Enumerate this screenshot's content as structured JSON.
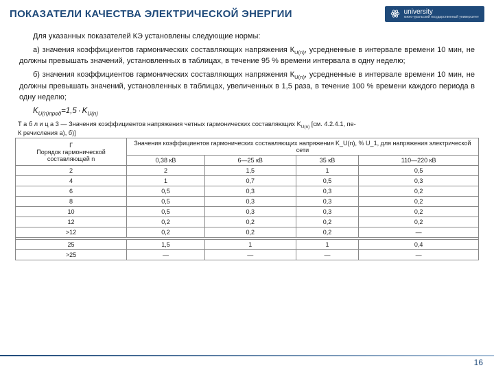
{
  "header": {
    "title": "ПОКАЗАТЕЛИ КАЧЕСТВА ЭЛЕКТРИЧЕСКОЙ ЭНЕРГИИ",
    "uni_main": "university",
    "uni_sub": "южно-уральский государственный университет"
  },
  "paragraphs": {
    "p1": "Для указанных показателей КЭ установлены следующие нормы:",
    "p2a": "а) значения коэффициентов гармонических составляющих напряжения К",
    "p2b": ", усредненные в интервале времени 10 мин, не должны превышать значений, установленных в таблицах, в течение 95 % времени интервала в одну неделю;",
    "p3a": "б) значения коэффициентов гармонических составляющих напряжения К",
    "p3b": ", усредненные в интервале времени 10 мин, не должны превышать значений, установленных в таблицах, увеличенных в 1,5 раза, в течение 100 % времени каждого периода в одну неделю;",
    "sub": "U(n)",
    "formula_left": "K",
    "formula_sub1": "U(n)пред",
    "formula_eq": "=1,5",
    "formula_right": "K",
    "formula_sub2": "U(n)"
  },
  "table": {
    "caption_a": "Т а б л и ц а 3 — Значения коэффициентов напряжения четных гармонических составляющих K",
    "caption_sub": "U(n)",
    "caption_b": " [см. 4.2.4.1, пе-",
    "caption_c": "К    речисления а), б)]",
    "head_group": "Значения коэффициентов гармонических составляющих напряжения K_U(n), % U_1, для напряжения электрической сети",
    "head_n": "Порядок гармонической составляющей n",
    "cols": [
      "0,38 кВ",
      "6—25 кВ",
      "35 кВ",
      "110—220 кВ"
    ],
    "rows": [
      [
        "2",
        "2",
        "1,5",
        "1",
        "0,5"
      ],
      [
        "4",
        "1",
        "0,7",
        "0,5",
        "0,3"
      ],
      [
        "6",
        "0,5",
        "0,3",
        "0,3",
        "0,2"
      ],
      [
        "8",
        "0,5",
        "0,3",
        "0,3",
        "0,2"
      ],
      [
        "10",
        "0,5",
        "0,3",
        "0,3",
        "0,2"
      ],
      [
        "12",
        "0,2",
        "0,2",
        "0,2",
        "0,2"
      ],
      [
        ">12",
        "0,2",
        "0,2",
        "0,2",
        "—"
      ]
    ],
    "rows2": [
      [
        "25",
        "1,5",
        "1",
        "1",
        "0,4"
      ],
      [
        ">25",
        "—",
        "—",
        "—",
        "—"
      ]
    ]
  },
  "page": "16",
  "colors": {
    "brand": "#1f4a7a"
  }
}
